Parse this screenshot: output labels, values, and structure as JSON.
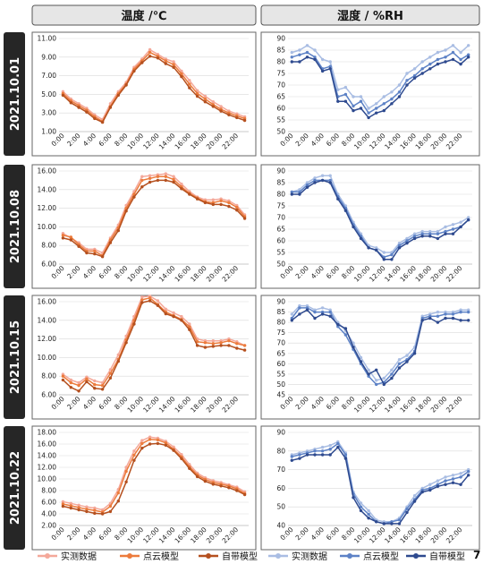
{
  "headers": {
    "temperature": "温度 /℃",
    "humidity": "湿度 / %RH"
  },
  "dates": [
    "2021.10.01",
    "2021.10.08",
    "2021.10.15",
    "2021.10.22"
  ],
  "page_number": "7",
  "legend": {
    "temperature": [
      {
        "label": "实测数据",
        "color": "#f4a89a"
      },
      {
        "label": "点云模型",
        "color": "#ec7b3c"
      },
      {
        "label": "自带模型",
        "color": "#b5501f"
      }
    ],
    "humidity": [
      {
        "label": "实测数据",
        "color": "#a9bde3"
      },
      {
        "label": "点云模型",
        "color": "#5d82c6"
      },
      {
        "label": "自带模型",
        "color": "#2e4a8f"
      }
    ]
  },
  "chart_data": [
    {
      "type": "line",
      "row": 0,
      "col": 0,
      "x": [
        0,
        1,
        2,
        3,
        4,
        5,
        6,
        7,
        8,
        9,
        10,
        11,
        12,
        13,
        14,
        15,
        16,
        17,
        18,
        19,
        20,
        21,
        22,
        23
      ],
      "x_tick_labels": [
        "0:00",
        "2:00",
        "4:00",
        "6:00",
        "8:00",
        "10:00",
        "12:00",
        "14:00",
        "16:00",
        "18:00",
        "20:00",
        "22:00"
      ],
      "ylim": [
        1,
        11
      ],
      "y_ticks": [
        1,
        3,
        5,
        7,
        9,
        11
      ],
      "y_tick_labels": [
        "1.00",
        "3.00",
        "5.00",
        "7.00",
        "9.00",
        "11.00"
      ],
      "grid": true,
      "series": [
        {
          "name": "实测数据",
          "values": [
            5.3,
            4.5,
            4.0,
            3.5,
            2.8,
            2.3,
            4.0,
            5.3,
            6.3,
            7.9,
            8.8,
            9.8,
            9.3,
            8.8,
            8.5,
            7.5,
            6.5,
            5.4,
            4.8,
            4.2,
            3.7,
            3.2,
            2.9,
            2.6
          ]
        },
        {
          "name": "点云模型",
          "values": [
            5.1,
            4.3,
            3.8,
            3.3,
            2.6,
            2.1,
            3.7,
            5.1,
            6.1,
            7.7,
            8.6,
            9.5,
            9.1,
            8.6,
            8.2,
            7.2,
            6.1,
            5.1,
            4.5,
            3.9,
            3.4,
            3.0,
            2.7,
            2.4
          ]
        },
        {
          "name": "自带模型",
          "values": [
            4.9,
            4.1,
            3.6,
            3.1,
            2.4,
            2.0,
            3.6,
            4.9,
            6.0,
            7.5,
            8.4,
            9.1,
            8.9,
            8.3,
            7.9,
            6.9,
            5.7,
            4.8,
            4.2,
            3.7,
            3.2,
            2.8,
            2.5,
            2.2
          ]
        }
      ]
    },
    {
      "type": "line",
      "row": 0,
      "col": 1,
      "x": [
        0,
        1,
        2,
        3,
        4,
        5,
        6,
        7,
        8,
        9,
        10,
        11,
        12,
        13,
        14,
        15,
        16,
        17,
        18,
        19,
        20,
        21,
        22,
        23
      ],
      "x_tick_labels": [
        "0:00",
        "2:00",
        "4:00",
        "6:00",
        "8:00",
        "10:00",
        "12:00",
        "14:00",
        "16:00",
        "18:00",
        "20:00",
        "22:00"
      ],
      "ylim": [
        50,
        90
      ],
      "y_ticks": [
        50,
        55,
        60,
        65,
        70,
        75,
        80,
        85,
        90
      ],
      "y_tick_labels": [
        "50",
        "55",
        "60",
        "65",
        "70",
        "75",
        "80",
        "85",
        "90"
      ],
      "grid": true,
      "series": [
        {
          "name": "实测数据",
          "values": [
            84,
            85,
            87,
            85,
            81,
            80,
            68,
            69,
            65,
            65,
            60,
            62,
            65,
            67,
            70,
            75,
            77,
            80,
            82,
            84,
            85,
            87,
            84,
            87
          ]
        },
        {
          "name": "点云模型",
          "values": [
            82,
            83,
            84,
            82,
            77,
            78,
            65,
            66,
            61,
            63,
            58,
            60,
            62,
            64,
            67,
            72,
            74,
            77,
            79,
            81,
            82,
            84,
            81,
            83
          ]
        },
        {
          "name": "自带模型",
          "values": [
            80,
            80,
            82,
            81,
            76,
            77,
            63,
            63,
            59,
            60,
            56,
            58,
            59,
            62,
            65,
            70,
            73,
            75,
            77,
            79,
            80,
            81,
            79,
            82
          ]
        }
      ]
    },
    {
      "type": "line",
      "row": 1,
      "col": 0,
      "x": [
        0,
        1,
        2,
        3,
        4,
        5,
        6,
        7,
        8,
        9,
        10,
        11,
        12,
        13,
        14,
        15,
        16,
        17,
        18,
        19,
        20,
        21,
        22,
        23
      ],
      "x_tick_labels": [
        "0:00",
        "2:00",
        "4:00",
        "6:00",
        "8:00",
        "10:00",
        "12:00",
        "14:00",
        "16:00",
        "18:00",
        "20:00",
        "22:00"
      ],
      "ylim": [
        6,
        16
      ],
      "y_ticks": [
        6,
        8,
        10,
        12,
        14,
        16
      ],
      "y_tick_labels": [
        "6.00",
        "8.00",
        "10.00",
        "12.00",
        "14.00",
        "16.00"
      ],
      "grid": true,
      "series": [
        {
          "name": "实测数据",
          "values": [
            9.3,
            8.8,
            8.3,
            7.6,
            7.6,
            7.2,
            8.8,
            10.2,
            12.3,
            13.8,
            15.4,
            15.5,
            15.6,
            15.7,
            15.4,
            14.6,
            13.8,
            13.2,
            12.9,
            12.9,
            13.0,
            12.8,
            12.3,
            11.3
          ]
        },
        {
          "name": "点云模型",
          "values": [
            9.1,
            8.9,
            8.1,
            7.4,
            7.4,
            6.9,
            8.6,
            9.9,
            12.0,
            13.5,
            15.0,
            15.2,
            15.4,
            15.4,
            15.1,
            14.3,
            13.6,
            13.1,
            12.7,
            12.6,
            12.8,
            12.6,
            12.1,
            11.1
          ]
        },
        {
          "name": "自带模型",
          "values": [
            8.8,
            8.6,
            7.9,
            7.2,
            7.1,
            6.8,
            8.3,
            9.6,
            11.7,
            13.2,
            14.3,
            14.8,
            15.0,
            15.0,
            14.8,
            14.1,
            13.5,
            13.0,
            12.6,
            12.4,
            12.4,
            12.2,
            11.8,
            10.9
          ]
        }
      ]
    },
    {
      "type": "line",
      "row": 1,
      "col": 1,
      "x": [
        0,
        1,
        2,
        3,
        4,
        5,
        6,
        7,
        8,
        9,
        10,
        11,
        12,
        13,
        14,
        15,
        16,
        17,
        18,
        19,
        20,
        21,
        22,
        23
      ],
      "x_tick_labels": [
        "0:00",
        "2:00",
        "4:00",
        "6:00",
        "8:00",
        "10:00",
        "12:00",
        "14:00",
        "16:00",
        "18:00",
        "20:00",
        "22:00"
      ],
      "ylim": [
        50,
        90
      ],
      "y_ticks": [
        50,
        55,
        60,
        65,
        70,
        75,
        80,
        85,
        90
      ],
      "y_tick_labels": [
        "50",
        "55",
        "60",
        "65",
        "70",
        "75",
        "80",
        "85",
        "90"
      ],
      "grid": true,
      "series": [
        {
          "name": "实测数据",
          "values": [
            81,
            82,
            85,
            87,
            88,
            88,
            80,
            75,
            68,
            63,
            58,
            57,
            55,
            55,
            59,
            61,
            63,
            64,
            64,
            64,
            66,
            67,
            68,
            70
          ]
        },
        {
          "name": "点云模型",
          "values": [
            81,
            81,
            84,
            86,
            86,
            86,
            79,
            74,
            67,
            62,
            57,
            56,
            53,
            54,
            58,
            60,
            62,
            63,
            63,
            63,
            64,
            65,
            66,
            69
          ]
        },
        {
          "name": "自带模型",
          "values": [
            80,
            80,
            83,
            85,
            86,
            85,
            78,
            73,
            66,
            61,
            57,
            56,
            52,
            52,
            57,
            59,
            61,
            62,
            62,
            61,
            63,
            63,
            66,
            69
          ]
        }
      ]
    },
    {
      "type": "line",
      "row": 2,
      "col": 0,
      "x": [
        0,
        1,
        2,
        3,
        4,
        5,
        6,
        7,
        8,
        9,
        10,
        11,
        12,
        13,
        14,
        15,
        16,
        17,
        18,
        19,
        20,
        21,
        22,
        23
      ],
      "x_tick_labels": [
        "0:00",
        "2:00",
        "4:00",
        "6:00",
        "8:00",
        "10:00",
        "12:00",
        "14:00",
        "16:00",
        "18:00",
        "20:00",
        "22:00"
      ],
      "ylim": [
        6,
        16
      ],
      "y_ticks": [
        6,
        8,
        10,
        12,
        14,
        16
      ],
      "y_tick_labels": [
        "6.00",
        "8.00",
        "10.00",
        "12.00",
        "14.00",
        "16.00"
      ],
      "grid": true,
      "series": [
        {
          "name": "实测数据",
          "values": [
            8.2,
            7.6,
            7.3,
            7.9,
            7.5,
            7.3,
            8.7,
            10.3,
            12.3,
            14.4,
            16.5,
            16.6,
            16.1,
            15.2,
            14.8,
            14.4,
            13.6,
            12.0,
            11.8,
            11.8,
            11.8,
            12.0,
            11.7,
            11.3
          ]
        },
        {
          "name": "点云模型",
          "values": [
            8.0,
            7.3,
            7.0,
            7.7,
            7.1,
            7.0,
            8.3,
            9.8,
            11.9,
            14.0,
            16.2,
            16.4,
            15.7,
            14.9,
            14.5,
            14.1,
            13.3,
            11.7,
            11.6,
            11.5,
            11.6,
            11.8,
            11.5,
            11.3
          ]
        },
        {
          "name": "自带模型",
          "values": [
            7.6,
            6.8,
            6.4,
            7.4,
            6.7,
            6.6,
            7.8,
            9.6,
            11.6,
            13.6,
            15.9,
            16.1,
            15.6,
            14.7,
            14.4,
            14.0,
            13.0,
            11.3,
            11.1,
            11.2,
            11.3,
            11.3,
            11.0,
            10.8
          ]
        }
      ]
    },
    {
      "type": "line",
      "row": 2,
      "col": 1,
      "x": [
        0,
        1,
        2,
        3,
        4,
        5,
        6,
        7,
        8,
        9,
        10,
        11,
        12,
        13,
        14,
        15,
        16,
        17,
        18,
        19,
        20,
        21,
        22,
        23
      ],
      "x_tick_labels": [
        "0:00",
        "2:00",
        "4:00",
        "6:00",
        "8:00",
        "10:00",
        "12:00",
        "14:00",
        "16:00",
        "18:00",
        "20:00",
        "22:00"
      ],
      "ylim": [
        45,
        90
      ],
      "y_ticks": [
        45,
        50,
        55,
        60,
        65,
        70,
        75,
        80,
        85,
        90
      ],
      "y_tick_labels": [
        "45",
        "50",
        "55",
        "60",
        "65",
        "70",
        "75",
        "80",
        "85",
        "90"
      ],
      "grid": true,
      "series": [
        {
          "name": "实测数据",
          "values": [
            84,
            88,
            88,
            86,
            87,
            86,
            80,
            76,
            70,
            63,
            57,
            52,
            53,
            57,
            62,
            64,
            68,
            83,
            84,
            85,
            85,
            85,
            86,
            86
          ]
        },
        {
          "name": "点云模型",
          "values": [
            82,
            87,
            87,
            85,
            85,
            85,
            78,
            74,
            67,
            60,
            54,
            50,
            51,
            55,
            60,
            62,
            66,
            82,
            83,
            83,
            84,
            84,
            85,
            85
          ]
        },
        {
          "name": "自带模型",
          "values": [
            81,
            84,
            86,
            82,
            84,
            83,
            79,
            77,
            68,
            61,
            55,
            57,
            50,
            53,
            58,
            61,
            65,
            81,
            82,
            80,
            82,
            82,
            81,
            81
          ]
        }
      ]
    },
    {
      "type": "line",
      "row": 3,
      "col": 0,
      "x": [
        0,
        1,
        2,
        3,
        4,
        5,
        6,
        7,
        8,
        9,
        10,
        11,
        12,
        13,
        14,
        15,
        16,
        17,
        18,
        19,
        20,
        21,
        22,
        23
      ],
      "x_tick_labels": [
        "0:00",
        "2:00",
        "4:00",
        "6:00",
        "8:00",
        "10:00",
        "12:00",
        "14:00",
        "16:00",
        "18:00",
        "20:00",
        "22:00"
      ],
      "ylim": [
        2,
        18
      ],
      "y_ticks": [
        2,
        4,
        6,
        8,
        10,
        12,
        14,
        16,
        18
      ],
      "y_tick_labels": [
        "2.00",
        "4.00",
        "6.00",
        "8.00",
        "10.00",
        "12.00",
        "14.00",
        "16.00",
        "18.00"
      ],
      "grid": true,
      "series": [
        {
          "name": "实测数据",
          "values": [
            6.1,
            5.8,
            5.5,
            5.2,
            5.0,
            4.7,
            5.8,
            8.2,
            12.0,
            14.8,
            16.6,
            17.2,
            17.0,
            16.5,
            15.5,
            14.2,
            12.5,
            11.0,
            10.2,
            9.7,
            9.4,
            9.0,
            8.6,
            7.8
          ]
        },
        {
          "name": "点云模型",
          "values": [
            5.7,
            5.4,
            5.1,
            4.8,
            4.6,
            4.3,
            5.3,
            7.6,
            11.3,
            14.1,
            16.1,
            16.8,
            16.7,
            16.2,
            15.1,
            13.8,
            12.1,
            10.7,
            9.9,
            9.4,
            9.1,
            8.8,
            8.3,
            7.5
          ]
        },
        {
          "name": "自带模型",
          "values": [
            5.3,
            5.0,
            4.7,
            4.4,
            4.1,
            4.0,
            4.4,
            6.2,
            9.5,
            13.2,
            15.3,
            16.0,
            16.1,
            15.8,
            14.9,
            13.5,
            11.8,
            10.4,
            9.6,
            9.1,
            8.8,
            8.5,
            8.0,
            7.3
          ]
        }
      ]
    },
    {
      "type": "line",
      "row": 3,
      "col": 1,
      "x": [
        0,
        1,
        2,
        3,
        4,
        5,
        6,
        7,
        8,
        9,
        10,
        11,
        12,
        13,
        14,
        15,
        16,
        17,
        18,
        19,
        20,
        21,
        22,
        23
      ],
      "x_tick_labels": [
        "0:00",
        "2:00",
        "4:00",
        "6:00",
        "8:00",
        "10:00",
        "12:00",
        "14:00",
        "16:00",
        "18:00",
        "20:00",
        "22:00"
      ],
      "ylim": [
        40,
        90
      ],
      "y_ticks": [
        40,
        50,
        60,
        70,
        80,
        90
      ],
      "y_tick_labels": [
        "40",
        "50",
        "60",
        "70",
        "80",
        "90"
      ],
      "grid": true,
      "series": [
        {
          "name": "实测数据",
          "values": [
            78,
            79,
            80,
            81,
            82,
            83,
            85,
            79,
            58,
            52,
            48,
            43,
            42,
            42,
            44,
            50,
            56,
            60,
            62,
            64,
            66,
            67,
            68,
            70
          ]
        },
        {
          "name": "点云模型",
          "values": [
            77,
            78,
            79,
            80,
            80,
            81,
            84,
            78,
            57,
            50,
            46,
            42,
            41,
            42,
            43,
            49,
            54,
            59,
            60,
            62,
            64,
            65,
            66,
            69
          ]
        },
        {
          "name": "自带模型",
          "values": [
            75,
            76,
            78,
            78,
            78,
            78,
            82,
            76,
            55,
            48,
            44,
            42,
            41,
            41,
            41,
            47,
            53,
            58,
            59,
            61,
            62,
            63,
            62,
            67
          ]
        }
      ]
    }
  ]
}
